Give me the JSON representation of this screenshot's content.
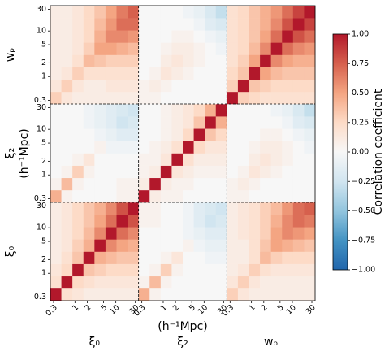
{
  "chart_data": {
    "type": "heatmap",
    "quantities": [
      "ξ₀",
      "ξ₂",
      "wₚ"
    ],
    "unit_label": "(h⁻¹Mpc)",
    "blocklim": [
      0.25,
      36
    ],
    "log_scale": true,
    "ticks": [
      0.3,
      1,
      2,
      5,
      10,
      30
    ],
    "zlim": [
      -1,
      1
    ],
    "colormap": [
      "#2166ac",
      "#4393c3",
      "#92c5de",
      "#d1e5f0",
      "#f7f7f7",
      "#fddbc7",
      "#f4a582",
      "#d6604d",
      "#b2182b"
    ],
    "colorbar_label": "Correlation coefficient",
    "colorbar_ticks": [
      {
        "value": 1,
        "label": "1.00"
      },
      {
        "value": 0.75,
        "label": "0.75"
      },
      {
        "value": 0.5,
        "label": "0.50"
      },
      {
        "value": 0.25,
        "label": "0.25"
      },
      {
        "value": 0,
        "label": "0.00"
      },
      {
        "value": -0.25,
        "label": "−0.25"
      },
      {
        "value": -0.5,
        "label": "−0.50"
      },
      {
        "value": -0.75,
        "label": "−0.75"
      },
      {
        "value": -1,
        "label": "−1.00"
      }
    ],
    "z": [
      [
        1,
        0.2,
        0.15,
        0.1,
        0.1,
        0.1,
        0.1,
        0.1,
        0.45,
        0.05,
        0,
        0,
        0,
        0,
        0,
        0,
        0.3,
        0.15,
        0.1,
        0.1,
        0.1,
        0.1,
        0.1,
        0.1
      ],
      [
        0.2,
        1,
        0.25,
        0.2,
        0.15,
        0.15,
        0.15,
        0.15,
        0.05,
        0.4,
        0.05,
        0,
        0,
        0,
        0,
        0,
        0.15,
        0.3,
        0.15,
        0.1,
        0.1,
        0.1,
        0.1,
        0.1
      ],
      [
        0.15,
        0.25,
        1,
        0.35,
        0.3,
        0.25,
        0.25,
        0.25,
        0,
        0.05,
        0.3,
        0.05,
        0,
        0,
        0,
        0,
        0.1,
        0.15,
        0.3,
        0.2,
        0.15,
        0.15,
        0.15,
        0.15
      ],
      [
        0.1,
        0.2,
        0.35,
        1,
        0.45,
        0.4,
        0.35,
        0.35,
        0,
        0,
        0.05,
        0.15,
        0,
        0,
        -0.05,
        -0.05,
        0.1,
        0.1,
        0.2,
        0.4,
        0.3,
        0.25,
        0.25,
        0.25
      ],
      [
        0.1,
        0.15,
        0.3,
        0.45,
        1,
        0.6,
        0.5,
        0.45,
        0,
        0,
        0,
        0,
        0.05,
        -0.05,
        -0.1,
        -0.1,
        0.1,
        0.1,
        0.2,
        0.35,
        0.5,
        0.45,
        0.4,
        0.35
      ],
      [
        0.1,
        0.15,
        0.25,
        0.4,
        0.6,
        1,
        0.7,
        0.6,
        0,
        0,
        0,
        0,
        -0.05,
        -0.1,
        -0.15,
        -0.15,
        0.1,
        0.15,
        0.2,
        0.3,
        0.5,
        0.6,
        0.55,
        0.5
      ],
      [
        0.1,
        0.15,
        0.25,
        0.35,
        0.5,
        0.7,
        1,
        0.8,
        0.05,
        0.05,
        0,
        0,
        -0.05,
        -0.15,
        -0.25,
        -0.2,
        0.1,
        0.15,
        0.2,
        0.3,
        0.45,
        0.6,
        0.7,
        0.65
      ],
      [
        0.1,
        0.15,
        0.25,
        0.35,
        0.45,
        0.6,
        0.8,
        1,
        0.05,
        0.05,
        0,
        0,
        -0.05,
        -0.15,
        -0.2,
        -0.25,
        0.1,
        0.15,
        0.2,
        0.3,
        0.4,
        0.55,
        0.7,
        0.75
      ],
      [
        0.45,
        0.05,
        0,
        0,
        0,
        0,
        0.05,
        0.05,
        1,
        0.1,
        0.05,
        0.05,
        0,
        0,
        0,
        0,
        0.05,
        0.05,
        0,
        0,
        0,
        0,
        0,
        0
      ],
      [
        0.05,
        0.4,
        0.05,
        0,
        0,
        0,
        0.05,
        0.05,
        0.1,
        1,
        0.1,
        0.05,
        0.05,
        0,
        0,
        0,
        0.05,
        0.1,
        0.05,
        0,
        0,
        0,
        0,
        0
      ],
      [
        0,
        0.05,
        0.3,
        0.05,
        0,
        0,
        0,
        0,
        0.05,
        0.1,
        1,
        0.15,
        0.1,
        0.05,
        0.05,
        0.05,
        0,
        0.05,
        0.15,
        0.1,
        0.05,
        0,
        0,
        0
      ],
      [
        0,
        0,
        0.05,
        0.15,
        0,
        0,
        0,
        0,
        0.05,
        0.05,
        0.15,
        1,
        0.2,
        0.1,
        0.1,
        0.1,
        0,
        0,
        0.1,
        0.15,
        0.1,
        0.05,
        0,
        0
      ],
      [
        0,
        0,
        0,
        0,
        0.05,
        -0.05,
        -0.05,
        -0.05,
        0,
        0.05,
        0.1,
        0.2,
        1,
        0.25,
        0.15,
        0.15,
        0,
        0,
        0.05,
        0.1,
        0.1,
        0.05,
        0,
        -0.05
      ],
      [
        0,
        0,
        0,
        0,
        -0.05,
        -0.1,
        -0.15,
        -0.15,
        0,
        0,
        0.05,
        0.1,
        0.25,
        1,
        0.35,
        0.25,
        0,
        0,
        0,
        0.05,
        0.05,
        0,
        -0.05,
        -0.1
      ],
      [
        0,
        0,
        0,
        -0.05,
        -0.1,
        -0.15,
        -0.25,
        -0.2,
        0,
        0,
        0.05,
        0.1,
        0.15,
        0.35,
        1,
        0.45,
        0,
        0,
        0,
        0,
        0,
        -0.05,
        -0.15,
        -0.2
      ],
      [
        0,
        0,
        0,
        -0.05,
        -0.1,
        -0.15,
        -0.2,
        -0.25,
        0,
        0,
        0.05,
        0.1,
        0.15,
        0.25,
        0.45,
        1,
        0,
        0,
        0,
        0,
        -0.05,
        -0.1,
        -0.2,
        -0.3
      ],
      [
        0.3,
        0.15,
        0.1,
        0.1,
        0.1,
        0.1,
        0.1,
        0.1,
        0.05,
        0.05,
        0,
        0,
        0,
        0,
        0,
        0,
        1,
        0.3,
        0.25,
        0.2,
        0.2,
        0.2,
        0.2,
        0.2
      ],
      [
        0.15,
        0.3,
        0.15,
        0.1,
        0.1,
        0.15,
        0.15,
        0.15,
        0.05,
        0.1,
        0.05,
        0,
        0,
        0,
        0,
        0,
        0.3,
        1,
        0.35,
        0.3,
        0.25,
        0.25,
        0.25,
        0.25
      ],
      [
        0.1,
        0.15,
        0.3,
        0.2,
        0.2,
        0.2,
        0.2,
        0.2,
        0,
        0.05,
        0.15,
        0.1,
        0.05,
        0,
        0,
        0,
        0.25,
        0.35,
        1,
        0.5,
        0.4,
        0.35,
        0.35,
        0.35
      ],
      [
        0.1,
        0.1,
        0.2,
        0.4,
        0.35,
        0.3,
        0.3,
        0.3,
        0,
        0,
        0.1,
        0.15,
        0.1,
        0.05,
        0,
        0,
        0.2,
        0.3,
        0.5,
        1,
        0.6,
        0.5,
        0.45,
        0.45
      ],
      [
        0.1,
        0.1,
        0.15,
        0.3,
        0.5,
        0.5,
        0.45,
        0.4,
        0,
        0,
        0.05,
        0.1,
        0.1,
        0.05,
        0,
        -0.05,
        0.2,
        0.25,
        0.4,
        0.6,
        1,
        0.7,
        0.6,
        0.55
      ],
      [
        0.1,
        0.1,
        0.15,
        0.25,
        0.45,
        0.6,
        0.6,
        0.55,
        0,
        0,
        0,
        0.05,
        0.05,
        0,
        -0.05,
        -0.1,
        0.2,
        0.25,
        0.35,
        0.5,
        0.7,
        1,
        0.8,
        0.7
      ],
      [
        0.1,
        0.1,
        0.15,
        0.25,
        0.4,
        0.55,
        0.7,
        0.7,
        0,
        0,
        0,
        0,
        0,
        -0.05,
        -0.15,
        -0.2,
        0.2,
        0.25,
        0.35,
        0.45,
        0.6,
        0.8,
        1,
        0.85
      ],
      [
        0.1,
        0.1,
        0.15,
        0.25,
        0.35,
        0.5,
        0.65,
        0.75,
        0,
        0,
        0,
        0,
        -0.05,
        -0.1,
        -0.2,
        -0.3,
        0.2,
        0.25,
        0.35,
        0.45,
        0.55,
        0.7,
        0.85,
        1
      ]
    ]
  }
}
